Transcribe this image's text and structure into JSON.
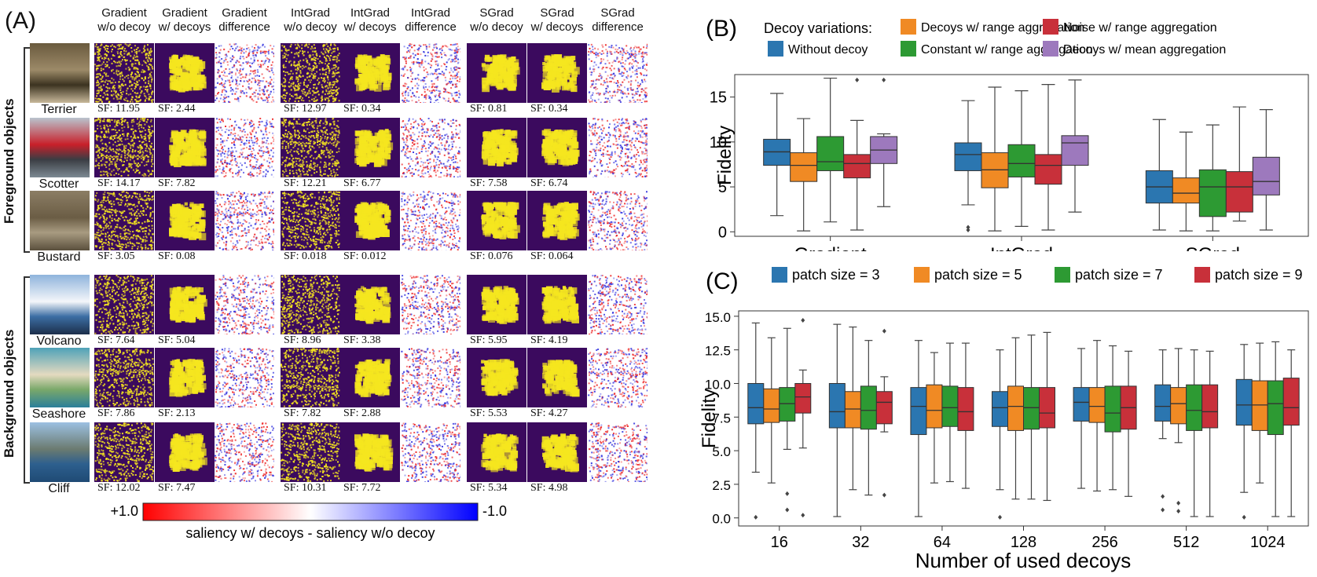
{
  "panel_a": {
    "letter": "(A)",
    "column_headers": [
      [
        "Gradient",
        "w/o decoy"
      ],
      [
        "Gradient",
        "w/ decoys"
      ],
      [
        "Gradient",
        "difference"
      ],
      [
        "IntGrad",
        "w/o decoy"
      ],
      [
        "IntGrad",
        "w/ decoys"
      ],
      [
        "IntGrad",
        "difference"
      ],
      [
        "SGrad",
        "w/o decoy"
      ],
      [
        "SGrad",
        "w/ decoys"
      ],
      [
        "SGrad",
        "difference"
      ]
    ],
    "groups": [
      "Foreground objects",
      "Background objects"
    ],
    "rows": [
      {
        "name": "Terrier",
        "sf": [
          "SF: 11.95",
          "SF: 2.44",
          "SF: 12.97",
          "SF: 0.34",
          "SF: 0.81",
          "SF: 0.34"
        ]
      },
      {
        "name": "Scotter",
        "sf": [
          "SF: 14.17",
          "SF: 7.82",
          "SF: 12.21",
          "SF: 6.77",
          "SF: 7.58",
          "SF: 6.74"
        ]
      },
      {
        "name": "Bustard",
        "sf": [
          "SF: 3.05",
          "SF: 0.08",
          "SF: 0.018",
          "SF: 0.012",
          "SF: 0.076",
          "SF: 0.064"
        ]
      },
      {
        "name": "Volcano",
        "sf": [
          "SF: 7.64",
          "SF: 5.04",
          "SF: 8.96",
          "SF: 3.38",
          "SF: 5.95",
          "SF: 4.19"
        ]
      },
      {
        "name": "Seashore",
        "sf": [
          "SF: 7.86",
          "SF: 2.13",
          "SF: 7.82",
          "SF: 2.88",
          "SF: 5.53",
          "SF: 4.27"
        ]
      },
      {
        "name": "Cliff",
        "sf": [
          "SF: 12.02",
          "SF: 7.47",
          "SF: 10.31",
          "SF: 7.72",
          "SF: 5.34",
          "SF: 4.98"
        ]
      }
    ],
    "colorbar": {
      "left_label": "+1.0",
      "right_label": "-1.0",
      "caption": "saliency w/ decoys - saliency w/o decoy",
      "colors": [
        "#ff0000",
        "#ffffff",
        "#0000ff"
      ]
    },
    "colors": {
      "saliency_bg": "#3b0a5e",
      "saliency_fg": "#f5e61f"
    }
  },
  "chart_data": [
    {
      "panel": "(B)",
      "type": "box",
      "legend_title": "Decoy variations:",
      "legend_position": "top",
      "categories": [
        "Gradient",
        "IntGrad",
        "SGrad"
      ],
      "ylabel": "Fidelity",
      "xlabel": "",
      "ylim": [
        -0.5,
        17.5
      ],
      "yticks": [
        0,
        5,
        10,
        15
      ],
      "series": [
        {
          "name": "Without decoy",
          "color": "#2b76b0",
          "boxes": [
            {
              "lo": 1.8,
              "q1": 7.4,
              "med": 8.9,
              "q3": 10.3,
              "hi": 15.4,
              "out": []
            },
            {
              "lo": 3.0,
              "q1": 6.8,
              "med": 8.6,
              "q3": 9.9,
              "hi": 14.6,
              "out": [
                0.5,
                0.2
              ]
            },
            {
              "lo": 0.2,
              "q1": 3.2,
              "med": 5.0,
              "q3": 6.8,
              "hi": 12.5,
              "out": []
            }
          ]
        },
        {
          "name": "Decoys w/ range aggregation",
          "color": "#f08a24",
          "boxes": [
            {
              "lo": 0.1,
              "q1": 5.6,
              "med": 7.4,
              "q3": 8.8,
              "hi": 12.6,
              "out": []
            },
            {
              "lo": 0.1,
              "q1": 4.9,
              "med": 6.9,
              "q3": 8.8,
              "hi": 16.1,
              "out": []
            },
            {
              "lo": 0.1,
              "q1": 3.2,
              "med": 4.3,
              "q3": 6.0,
              "hi": 11.1,
              "out": []
            }
          ]
        },
        {
          "name": "Constant w/ range aggregation",
          "color": "#2d9a33",
          "boxes": [
            {
              "lo": 1.1,
              "q1": 6.8,
              "med": 7.8,
              "q3": 10.6,
              "hi": 17.1,
              "out": []
            },
            {
              "lo": 0.6,
              "q1": 6.1,
              "med": 7.6,
              "q3": 9.7,
              "hi": 15.7,
              "out": []
            },
            {
              "lo": 0.1,
              "q1": 1.7,
              "med": 5.0,
              "q3": 6.9,
              "hi": 11.9,
              "out": []
            }
          ]
        },
        {
          "name": "Noise w/ range aggregation",
          "color": "#c8303a",
          "boxes": [
            {
              "lo": 0.2,
              "q1": 6.0,
              "med": 7.6,
              "q3": 8.6,
              "hi": 12.4,
              "out": [
                16.9
              ]
            },
            {
              "lo": 0.2,
              "q1": 5.3,
              "med": 7.4,
              "q3": 8.6,
              "hi": 16.4,
              "out": []
            },
            {
              "lo": 1.2,
              "q1": 2.2,
              "med": 5.0,
              "q3": 6.7,
              "hi": 13.9,
              "out": []
            }
          ]
        },
        {
          "name": "Decoys w/ mean aggregation",
          "color": "#9d79bd",
          "boxes": [
            {
              "lo": 2.8,
              "q1": 7.6,
              "med": 9.1,
              "q3": 10.6,
              "hi": 10.9,
              "out": [
                16.9
              ]
            },
            {
              "lo": 2.2,
              "q1": 7.4,
              "med": 9.9,
              "q3": 10.7,
              "hi": 16.9,
              "out": []
            },
            {
              "lo": 0.2,
              "q1": 4.1,
              "med": 5.6,
              "q3": 8.3,
              "hi": 13.6,
              "out": []
            }
          ]
        }
      ]
    },
    {
      "panel": "(C)",
      "type": "box",
      "legend_position": "top",
      "categories": [
        "16",
        "32",
        "64",
        "128",
        "256",
        "512",
        "1024"
      ],
      "xlabel": "Number of used decoys",
      "ylabel": "Fidelity",
      "ylim": [
        -0.6,
        15.4
      ],
      "yticks": [
        "0.0",
        "2.5",
        "5.0",
        "7.5",
        "10.0",
        "12.5",
        "15.0"
      ],
      "series": [
        {
          "name": "patch size = 3",
          "color": "#2b76b0",
          "boxes": [
            {
              "lo": 3.4,
              "q1": 7.0,
              "med": 8.2,
              "q3": 10.0,
              "hi": 14.5,
              "out": [
                0.05
              ]
            },
            {
              "lo": 0.1,
              "q1": 6.7,
              "med": 7.9,
              "q3": 10.0,
              "hi": 14.4,
              "out": []
            },
            {
              "lo": 0.1,
              "q1": 6.2,
              "med": 8.3,
              "q3": 9.7,
              "hi": 13.2,
              "out": []
            },
            {
              "lo": 2.1,
              "q1": 6.8,
              "med": 8.2,
              "q3": 9.4,
              "hi": 12.5,
              "out": [
                0.05
              ]
            },
            {
              "lo": 2.2,
              "q1": 7.2,
              "med": 8.6,
              "q3": 9.7,
              "hi": 12.6,
              "out": []
            },
            {
              "lo": 5.9,
              "q1": 7.2,
              "med": 8.3,
              "q3": 9.9,
              "hi": 12.5,
              "out": [
                1.6,
                0.6
              ]
            },
            {
              "lo": 1.9,
              "q1": 6.9,
              "med": 8.4,
              "q3": 10.3,
              "hi": 12.9,
              "out": [
                0.05
              ]
            }
          ]
        },
        {
          "name": "patch size = 5",
          "color": "#f08a24",
          "boxes": [
            {
              "lo": 2.6,
              "q1": 7.1,
              "med": 8.1,
              "q3": 9.6,
              "hi": 13.4,
              "out": []
            },
            {
              "lo": 2.1,
              "q1": 6.7,
              "med": 8.1,
              "q3": 9.4,
              "hi": 14.2,
              "out": []
            },
            {
              "lo": 2.6,
              "q1": 6.7,
              "med": 8.0,
              "q3": 9.9,
              "hi": 12.3,
              "out": []
            },
            {
              "lo": 1.4,
              "q1": 6.5,
              "med": 8.3,
              "q3": 9.8,
              "hi": 13.4,
              "out": []
            },
            {
              "lo": 2.0,
              "q1": 7.1,
              "med": 8.3,
              "q3": 9.7,
              "hi": 13.2,
              "out": []
            },
            {
              "lo": 5.6,
              "q1": 7.0,
              "med": 8.5,
              "q3": 9.7,
              "hi": 12.6,
              "out": [
                1.1,
                0.5
              ]
            },
            {
              "lo": 2.6,
              "q1": 6.5,
              "med": 8.4,
              "q3": 10.2,
              "hi": 13.0,
              "out": []
            }
          ]
        },
        {
          "name": "patch size = 7",
          "color": "#2d9a33",
          "boxes": [
            {
              "lo": 5.1,
              "q1": 7.2,
              "med": 8.5,
              "q3": 9.7,
              "hi": 14.1,
              "out": [
                1.8,
                0.6
              ]
            },
            {
              "lo": 1.7,
              "q1": 6.6,
              "med": 8.0,
              "q3": 9.8,
              "hi": 13.2,
              "out": []
            },
            {
              "lo": 2.7,
              "q1": 6.8,
              "med": 8.2,
              "q3": 9.8,
              "hi": 13.0,
              "out": []
            },
            {
              "lo": 1.4,
              "q1": 6.6,
              "med": 8.2,
              "q3": 9.7,
              "hi": 13.6,
              "out": []
            },
            {
              "lo": 2.1,
              "q1": 6.4,
              "med": 7.8,
              "q3": 9.8,
              "hi": 12.8,
              "out": []
            },
            {
              "lo": 0.1,
              "q1": 6.5,
              "med": 8.0,
              "q3": 9.9,
              "hi": 12.5,
              "out": []
            },
            {
              "lo": 0.1,
              "q1": 6.2,
              "med": 8.5,
              "q3": 10.2,
              "hi": 13.1,
              "out": []
            }
          ]
        },
        {
          "name": "patch size = 9",
          "color": "#c8303a",
          "boxes": [
            {
              "lo": 5.2,
              "q1": 7.8,
              "med": 9.0,
              "q3": 10.0,
              "hi": 11.0,
              "out": [
                14.7,
                0.2
              ]
            },
            {
              "lo": 6.4,
              "q1": 7.0,
              "med": 8.6,
              "q3": 9.4,
              "hi": 10.5,
              "out": [
                13.9,
                1.7
              ]
            },
            {
              "lo": 2.2,
              "q1": 6.5,
              "med": 7.9,
              "q3": 9.7,
              "hi": 13.0,
              "out": []
            },
            {
              "lo": 1.3,
              "q1": 6.7,
              "med": 7.8,
              "q3": 9.7,
              "hi": 13.8,
              "out": []
            },
            {
              "lo": 1.6,
              "q1": 6.6,
              "med": 8.2,
              "q3": 9.8,
              "hi": 12.4,
              "out": []
            },
            {
              "lo": 0.1,
              "q1": 6.7,
              "med": 7.9,
              "q3": 9.9,
              "hi": 12.4,
              "out": []
            },
            {
              "lo": 0.1,
              "q1": 6.9,
              "med": 8.2,
              "q3": 10.4,
              "hi": 12.5,
              "out": []
            }
          ]
        }
      ]
    }
  ]
}
